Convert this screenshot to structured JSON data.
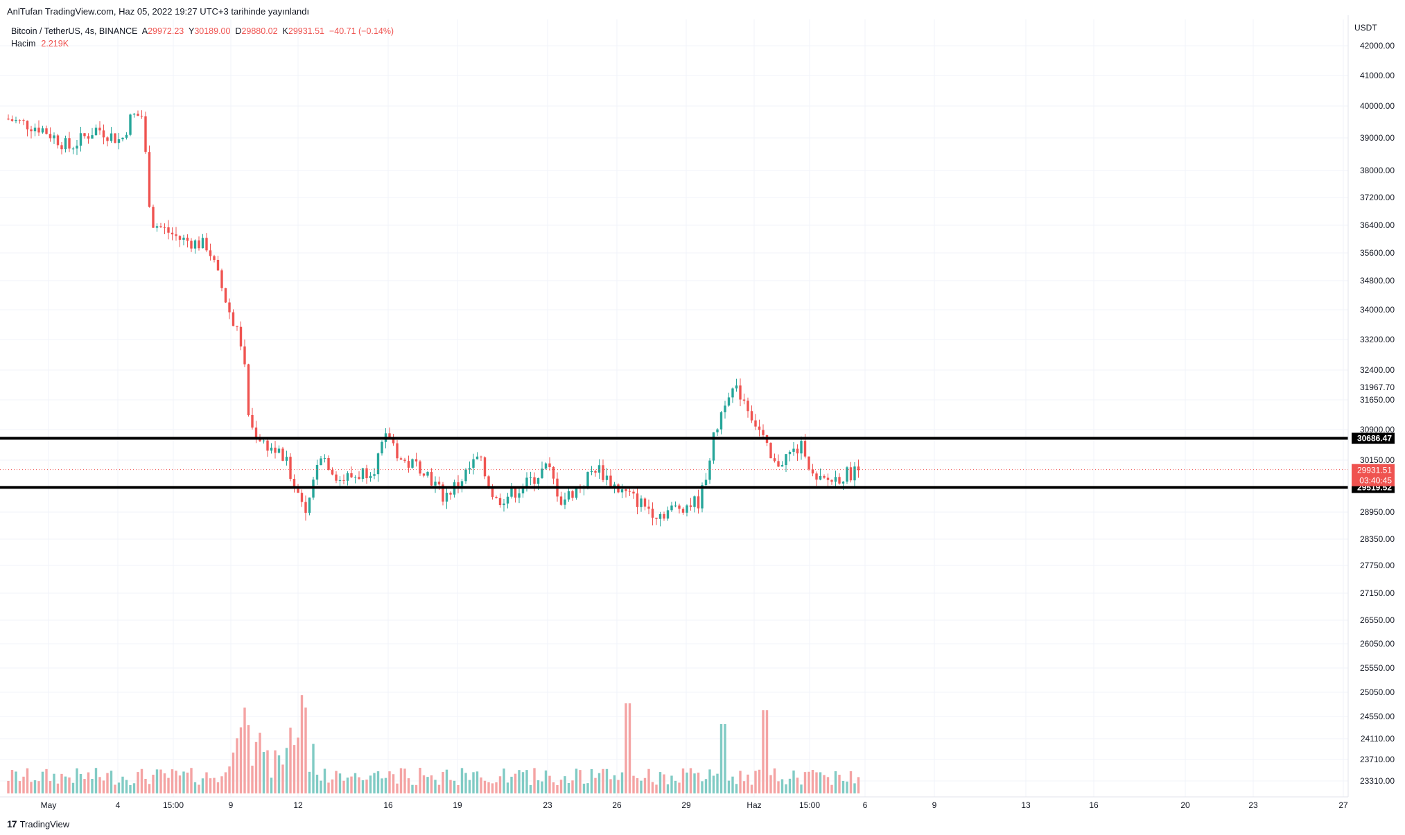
{
  "header": {
    "published": "AnlTufan TradingView.com, Haz 05, 2022 19:27 UTC+3 tarihinde yayınlandı"
  },
  "legend": {
    "symbol": "Bitcoin / TetherUS, 4s, BINANCE",
    "open_label": "A",
    "open": "29972.23",
    "high_label": "Y",
    "high": "30189.00",
    "low_label": "D",
    "low": "29880.02",
    "close_label": "K",
    "close": "29931.51",
    "change": "−40.71 (−0.14%)",
    "volume_label": "Hacim",
    "volume": "2.219K"
  },
  "footer": {
    "brand": "TradingView",
    "logo_icon": "tradingview-logo-icon"
  },
  "colors": {
    "up": "#26a69a",
    "down": "#ef5350",
    "vol_up": "#80cbc4",
    "vol_down": "#f4a3a3",
    "line": "#000000",
    "grid": "#f0f3fa"
  },
  "chart_data": {
    "type": "candlestick",
    "currency": "USDT",
    "y_axis_ticks": [
      42000,
      41000,
      40000,
      39000,
      38000,
      37200,
      36400,
      35600,
      34800,
      34000,
      33200,
      32400,
      31650,
      30900,
      30150,
      28950,
      28350,
      27750,
      27150,
      26550,
      26050,
      25550,
      25050,
      24550,
      24110,
      23710,
      23310
    ],
    "y_axis_tick_labels": [
      "42000.00",
      "41000.00",
      "40000.00",
      "39000.00",
      "38000.00",
      "37200.00",
      "36400.00",
      "35600.00",
      "34800.00",
      "34000.00",
      "33200.00",
      "32400.00",
      "31650.00",
      "30900.00",
      "30150.00",
      "28950.00",
      "28350.00",
      "27750.00",
      "27150.00",
      "26550.00",
      "26050.00",
      "25550.00",
      "25050.00",
      "24550.00",
      "24110.00",
      "23710.00",
      "23310.00"
    ],
    "x_axis_labels": [
      "May",
      "4",
      "15:00",
      "9",
      "12",
      "16",
      "19",
      "23",
      "26",
      "29",
      "Haz",
      "15:00",
      "6",
      "9",
      "13",
      "16",
      "20",
      "23",
      "27"
    ],
    "horizontal_lines": [
      {
        "value": 30686.47,
        "label": "30686.47"
      },
      {
        "value": 29519.52,
        "label": "29519.52"
      }
    ],
    "last_price": {
      "value": 29931.51,
      "label": "29931.51",
      "countdown": "03:40:45"
    },
    "high_marker": {
      "value": 31967.7,
      "label": "31967.70"
    },
    "key_closes": [
      {
        "date": "May 1",
        "close": 39600
      },
      {
        "date": "May 5",
        "close": 39700
      },
      {
        "date": "May 6",
        "close": 36500
      },
      {
        "date": "May 9",
        "close": 34000
      },
      {
        "date": "May 10",
        "close": 31000
      },
      {
        "date": "May 12",
        "close": 28700
      },
      {
        "date": "May 16",
        "close": 30000
      },
      {
        "date": "May 20",
        "close": 29200
      },
      {
        "date": "May 23",
        "close": 29300
      },
      {
        "date": "May 27",
        "close": 28700
      },
      {
        "date": "May 31",
        "close": 31700
      },
      {
        "date": "Jun 1",
        "close": 30000
      },
      {
        "date": "Jun 5",
        "close": 29931.51
      }
    ]
  }
}
